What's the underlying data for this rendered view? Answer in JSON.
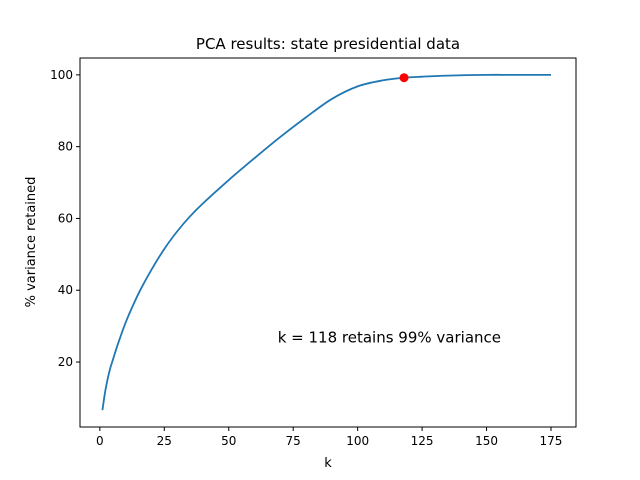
{
  "chart_data": {
    "type": "line",
    "title": "PCA results: state presidential data",
    "xlabel": "k",
    "ylabel": "% variance retained",
    "xlim": [
      -7.7,
      184.7
    ],
    "ylim": [
      1.9,
      104.7
    ],
    "xticks": [
      0,
      25,
      50,
      75,
      100,
      125,
      150,
      175
    ],
    "yticks": [
      20,
      40,
      60,
      80,
      100
    ],
    "grid": false,
    "series": [
      {
        "name": "variance retained",
        "color": "#1f77b4",
        "x": [
          1,
          2,
          3,
          4,
          5,
          7,
          10,
          13,
          16,
          20,
          25,
          30,
          35,
          40,
          50,
          60,
          70,
          80,
          90,
          100,
          110,
          118,
          125,
          135,
          150,
          160,
          175
        ],
        "y": [
          6.6,
          11.5,
          15.2,
          18.2,
          20.5,
          25,
          31,
          36,
          40.5,
          45.7,
          51.5,
          56.4,
          60.6,
          64.2,
          70.7,
          76.8,
          82.7,
          88.2,
          93.3,
          96.8,
          98.5,
          99.2,
          99.5,
          99.8,
          100,
          100,
          100
        ]
      }
    ],
    "highlight_point": {
      "x": 118,
      "y": 99.2,
      "color": "#ff0000"
    },
    "annotation": {
      "text": "k = 118 retains 99% variance",
      "x": 69,
      "y": 25.5
    }
  }
}
